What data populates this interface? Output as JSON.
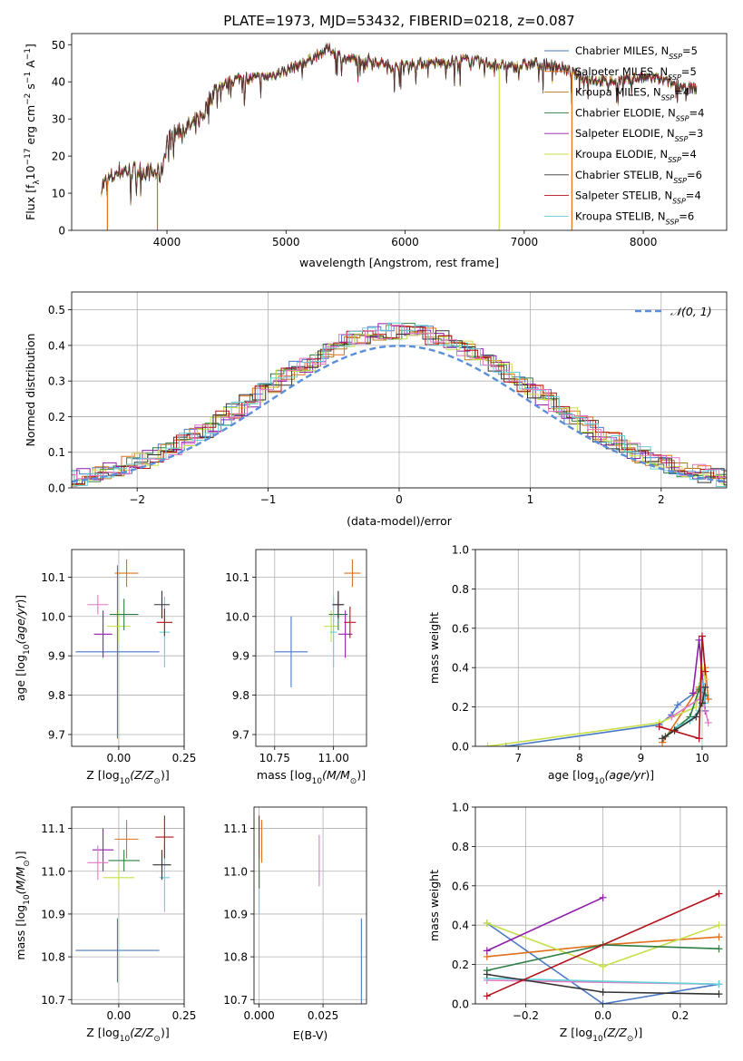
{
  "colors": {
    "Chabrier MILES": "#4a79c8",
    "Salpeter MILES": "#e0701c",
    "Kroupa MILES": "#b07c1e",
    "Chabrier ELODIE": "#2e7d43",
    "Salpeter ELODIE": "#8f1ea8",
    "Kroupa ELODIE": "#c5e04a",
    "Chabrier STELIB": "#333333",
    "Salpeter STELIB": "#b3121a",
    "Kroupa STELIB": "#63d0d8",
    "pink": "#e377c2",
    "normal": "#5b8fd9"
  },
  "chart_data": [
    {
      "type": "line",
      "title": "PLATE=1973, MJD=53432, FIBERID=0218, z=0.087",
      "xlabel": "wavelength [Angstrom, rest frame]",
      "ylabel_parts": [
        "Flux [f",
        "λ",
        "10",
        "−17",
        " erg cm",
        "−2",
        " s",
        "−1",
        " A",
        "−1",
        "]"
      ],
      "xlim": [
        3200,
        8700
      ],
      "ylim": [
        0,
        53
      ],
      "xticks": [
        4000,
        5000,
        6000,
        7000,
        8000
      ],
      "yticks": [
        0,
        10,
        20,
        30,
        40,
        50
      ],
      "legend_position": "upper right",
      "series": [
        {
          "name": "Chabrier MILES",
          "subscript": "SSP",
          "n": "5"
        },
        {
          "name": "Salpeter MILES",
          "subscript": "SSP",
          "n": "5"
        },
        {
          "name": "Kroupa MILES",
          "subscript": "SSP",
          "n": "4"
        },
        {
          "name": "Chabrier ELODIE",
          "subscript": "SSP",
          "n": "4"
        },
        {
          "name": "Salpeter ELODIE",
          "subscript": "SSP",
          "n": "3"
        },
        {
          "name": "Kroupa ELODIE",
          "subscript": "SSP",
          "n": "4"
        },
        {
          "name": "Chabrier STELIB",
          "subscript": "SSP",
          "n": "6"
        },
        {
          "name": "Salpeter STELIB",
          "subscript": "SSP",
          "n": "4"
        },
        {
          "name": "Kroupa STELIB",
          "subscript": "SSP",
          "n": "6"
        }
      ],
      "spectrum_shape": {
        "x": [
          3450,
          3600,
          3800,
          3950,
          4000,
          4100,
          4200,
          4300,
          4400,
          4600,
          4800,
          5000,
          5200,
          5350,
          5500,
          5700,
          5900,
          6100,
          6300,
          6500,
          6700,
          6900,
          7100,
          7300,
          7500,
          7700,
          7900,
          8100,
          8300,
          8450
        ],
        "y": [
          12,
          16,
          16,
          15,
          24,
          27,
          28,
          31,
          38,
          41,
          41,
          43,
          46,
          49,
          46,
          46,
          44,
          45,
          45,
          46,
          45,
          44,
          45,
          44,
          41,
          40,
          41,
          41,
          39,
          38
        ]
      },
      "dropouts": [
        {
          "x": 3500,
          "color": "Salpeter MILES"
        },
        {
          "x": 3920,
          "color": "Kroupa MILES"
        },
        {
          "x": 6790,
          "color": "Kroupa ELODIE"
        },
        {
          "x": 7400,
          "color": "Salpeter MILES"
        }
      ]
    },
    {
      "type": "line",
      "title": "",
      "xlabel": "(data-model)/error",
      "ylabel": "Normed distribution",
      "xlim": [
        -2.5,
        2.5
      ],
      "ylim": [
        0,
        0.55
      ],
      "xticks": [
        -2,
        -1,
        0,
        1,
        2
      ],
      "yticks": [
        0.0,
        0.1,
        0.2,
        0.3,
        0.4,
        0.5
      ],
      "grid": true,
      "legend_position": "upper right",
      "reference": {
        "name": "𝒩(0, 1)",
        "mean": 0,
        "sigma": 1
      }
    },
    {
      "type": "scatter",
      "xlabel": "Z [log10(Z/Z⊙)]",
      "ylabel": "age  [log10(age/yr)]",
      "xlim": [
        -0.18,
        0.25
      ],
      "ylim": [
        9.67,
        10.17
      ],
      "xticks": [
        0.0,
        0.25
      ],
      "yticks": [
        9.7,
        9.8,
        9.9,
        10.0,
        10.1
      ],
      "grid": true,
      "points": [
        {
          "color": "Chabrier MILES",
          "x": -0.005,
          "y": 9.91,
          "xerr": 0.16,
          "yerr": 0.22
        },
        {
          "color": "Salpeter MILES",
          "x": 0.03,
          "y": 10.11,
          "xerr": 0.045,
          "yerr": 0.035
        },
        {
          "color": "Kroupa ELODIE",
          "x": 0.0,
          "y": 9.975,
          "xerr": 0.045,
          "yerr": 0.04
        },
        {
          "color": "Chabrier ELODIE",
          "x": 0.02,
          "y": 10.005,
          "xerr": 0.055,
          "yerr": 0.04
        },
        {
          "color": "Salpeter ELODIE",
          "x": -0.06,
          "y": 9.955,
          "xerr": 0.035,
          "yerr": 0.06
        },
        {
          "color": "pink",
          "x": -0.08,
          "y": 10.03,
          "xerr": 0.04,
          "yerr": 0.025
        },
        {
          "color": "Kroupa STELIB",
          "x": 0.175,
          "y": 9.96,
          "xerr": 0.02,
          "yerr": 0.09
        },
        {
          "color": "Chabrier STELIB",
          "x": 0.165,
          "y": 10.03,
          "xerr": 0.03,
          "yerr": 0.035
        },
        {
          "color": "Salpeter STELIB",
          "x": 0.175,
          "y": 9.985,
          "xerr": 0.03,
          "yerr": 0.035
        }
      ]
    },
    {
      "type": "scatter",
      "xlabel": "mass [log10(M/M⊙)]",
      "ylabel": "",
      "xlim": [
        10.67,
        11.14
      ],
      "ylim": [
        9.67,
        10.17
      ],
      "xticks": [
        10.75,
        11.0
      ],
      "yticks": [
        9.7,
        9.8,
        9.9,
        10.0,
        10.1
      ],
      "grid": true,
      "points": [
        {
          "color": "Chabrier MILES",
          "x": 10.82,
          "y": 9.91,
          "xerr": 0.07,
          "yerr": 0.09
        },
        {
          "color": "Salpeter MILES",
          "x": 11.08,
          "y": 10.11,
          "xerr": 0.035,
          "yerr": 0.035
        },
        {
          "color": "Kroupa ELODIE",
          "x": 10.99,
          "y": 9.975,
          "xerr": 0.03,
          "yerr": 0.04
        },
        {
          "color": "Chabrier ELODIE",
          "x": 11.02,
          "y": 10.005,
          "xerr": 0.04,
          "yerr": 0.04
        },
        {
          "color": "Salpeter ELODIE",
          "x": 11.05,
          "y": 9.955,
          "xerr": 0.03,
          "yerr": 0.06
        },
        {
          "color": "pink",
          "x": 11.02,
          "y": 10.03,
          "xerr": 0.02,
          "yerr": 0.03
        },
        {
          "color": "Kroupa STELIB",
          "x": 11.0,
          "y": 9.96,
          "xerr": 0.015,
          "yerr": 0.09
        },
        {
          "color": "Chabrier STELIB",
          "x": 11.02,
          "y": 10.03,
          "xerr": 0.025,
          "yerr": 0.035
        },
        {
          "color": "Salpeter STELIB",
          "x": 11.07,
          "y": 9.985,
          "xerr": 0.025,
          "yerr": 0.04
        }
      ]
    },
    {
      "type": "line",
      "xlabel": "age  [log10(age/yr)]",
      "ylabel": "mass weight",
      "xlim": [
        6.3,
        10.4
      ],
      "ylim": [
        0,
        1
      ],
      "xticks": [
        7,
        8,
        9,
        10
      ],
      "yticks": [
        0.0,
        0.2,
        0.4,
        0.6,
        0.8,
        1.0
      ],
      "grid": true,
      "series": [
        {
          "color": "Chabrier MILES",
          "x": [
            6.8,
            9.3,
            9.5,
            9.6,
            10.0,
            10.1
          ],
          "y": [
            0.0,
            0.11,
            0.16,
            0.21,
            0.3,
            0.24
          ]
        },
        {
          "color": "Salpeter MILES",
          "x": [
            9.35,
            9.95,
            10.05,
            10.1
          ],
          "y": [
            0.02,
            0.3,
            0.4,
            0.24
          ]
        },
        {
          "color": "Kroupa ELODIE",
          "x": [
            6.5,
            9.3,
            9.9,
            10.0,
            10.05
          ],
          "y": [
            0.0,
            0.12,
            0.2,
            0.4,
            0.34
          ]
        },
        {
          "color": "Chabrier ELODIE",
          "x": [
            9.4,
            9.8,
            9.95,
            10.05
          ],
          "y": [
            0.05,
            0.15,
            0.29,
            0.26
          ]
        },
        {
          "color": "Salpeter ELODIE",
          "x": [
            9.85,
            9.95,
            10.05
          ],
          "y": [
            0.27,
            0.54,
            0.18
          ]
        },
        {
          "color": "pink",
          "x": [
            9.5,
            10.0,
            10.1
          ],
          "y": [
            0.15,
            0.25,
            0.12
          ]
        },
        {
          "color": "Kroupa STELIB",
          "x": [
            9.6,
            9.8,
            9.95,
            10.0,
            10.05
          ],
          "y": [
            0.1,
            0.13,
            0.18,
            0.32,
            0.22
          ]
        },
        {
          "color": "Chabrier STELIB",
          "x": [
            9.35,
            9.55,
            9.9,
            10.0,
            10.05
          ],
          "y": [
            0.04,
            0.08,
            0.15,
            0.22,
            0.3
          ]
        },
        {
          "color": "Salpeter STELIB",
          "x": [
            9.3,
            9.95,
            10.0,
            10.05
          ],
          "y": [
            0.1,
            0.04,
            0.56,
            0.38
          ]
        }
      ]
    },
    {
      "type": "scatter",
      "xlabel": "Z [log10(Z/Z⊙)]",
      "ylabel": "mass [log10(M/M⊙)]",
      "xlim": [
        -0.18,
        0.25
      ],
      "ylim": [
        10.69,
        11.15
      ],
      "xticks": [
        0.0,
        0.25
      ],
      "yticks": [
        10.7,
        10.8,
        10.9,
        11.0,
        11.1
      ],
      "grid": true,
      "points": [
        {
          "color": "Chabrier MILES",
          "x": -0.005,
          "y": 10.815,
          "xerr": 0.16,
          "yerr": 0.075
        },
        {
          "color": "Salpeter MILES",
          "x": 0.03,
          "y": 11.075,
          "xerr": 0.045,
          "yerr": 0.045
        },
        {
          "color": "Kroupa ELODIE",
          "x": 0.0,
          "y": 10.985,
          "xerr": 0.06,
          "yerr": 0.025
        },
        {
          "color": "Chabrier ELODIE",
          "x": 0.02,
          "y": 11.025,
          "xerr": 0.06,
          "yerr": 0.025
        },
        {
          "color": "Salpeter ELODIE",
          "x": -0.06,
          "y": 11.05,
          "xerr": 0.04,
          "yerr": 0.05
        },
        {
          "color": "pink",
          "x": -0.08,
          "y": 11.02,
          "xerr": 0.04,
          "yerr": 0.04
        },
        {
          "color": "Kroupa STELIB",
          "x": 0.175,
          "y": 10.985,
          "xerr": 0.02,
          "yerr": 0.08
        },
        {
          "color": "Chabrier STELIB",
          "x": 0.165,
          "y": 11.015,
          "xerr": 0.035,
          "yerr": 0.035
        },
        {
          "color": "Salpeter STELIB",
          "x": 0.175,
          "y": 11.08,
          "xerr": 0.035,
          "yerr": 0.05
        }
      ]
    },
    {
      "type": "scatter",
      "xlabel": "E(B-V)",
      "ylabel": "",
      "xlim": [
        -0.002,
        0.042
      ],
      "ylim": [
        10.69,
        11.15
      ],
      "xticks": [
        0.0,
        0.025
      ],
      "yticks": [
        10.7,
        10.8,
        10.9,
        11.0,
        11.1
      ],
      "grid": true,
      "points": [
        {
          "color": "Chabrier MILES",
          "x": 0.04,
          "y": 10.79,
          "xerr": 0,
          "yerr": 0.1
        },
        {
          "color": "Salpeter MILES",
          "x": 0.001,
          "y": 11.07,
          "xerr": 0,
          "yerr": 0.05
        },
        {
          "color": "Kroupa STELIB",
          "x": 0.0,
          "y": 10.95,
          "xerr": 0,
          "yerr": 0.05
        },
        {
          "color": "Salpeter STELIB",
          "x": 0.0,
          "y": 11.08,
          "xerr": 0,
          "yerr": 0.05
        },
        {
          "color": "Chabrier ELODIE",
          "x": 0.0,
          "y": 11.0,
          "xerr": 0,
          "yerr": 0.04
        },
        {
          "color": "pink",
          "x": 0.0235,
          "y": 11.025,
          "xerr": 0,
          "yerr": 0.06
        }
      ]
    },
    {
      "type": "line",
      "xlabel": "Z [log10(Z/Z⊙)]",
      "ylabel": "mass weight",
      "xlim": [
        -0.33,
        0.32
      ],
      "ylim": [
        0,
        1
      ],
      "xticks": [
        -0.2,
        0.0,
        0.2
      ],
      "yticks": [
        0.0,
        0.2,
        0.4,
        0.6,
        0.8,
        1.0
      ],
      "grid": true,
      "series": [
        {
          "color": "Chabrier MILES",
          "x": [
            -0.3,
            0.0,
            0.3
          ],
          "y": [
            0.41,
            0.0,
            0.1
          ]
        },
        {
          "color": "Salpeter MILES",
          "x": [
            -0.3,
            0.0,
            0.3
          ],
          "y": [
            0.24,
            0.3,
            0.34
          ]
        },
        {
          "color": "Kroupa ELODIE",
          "x": [
            -0.3,
            0.0,
            0.3
          ],
          "y": [
            0.41,
            0.19,
            0.4
          ]
        },
        {
          "color": "Chabrier ELODIE",
          "x": [
            -0.3,
            0.0,
            0.3
          ],
          "y": [
            0.17,
            0.3,
            0.28
          ]
        },
        {
          "color": "Salpeter ELODIE",
          "x": [
            -0.3,
            0.0
          ],
          "y": [
            0.27,
            0.54
          ]
        },
        {
          "color": "pink",
          "x": [
            -0.3,
            0.3
          ],
          "y": [
            0.12,
            0.1
          ]
        },
        {
          "color": "Kroupa STELIB",
          "x": [
            -0.3,
            0.3
          ],
          "y": [
            0.13,
            0.1
          ]
        },
        {
          "color": "Chabrier STELIB",
          "x": [
            -0.3,
            0.0,
            0.3
          ],
          "y": [
            0.15,
            0.06,
            0.05
          ]
        },
        {
          "color": "Salpeter STELIB",
          "x": [
            -0.3,
            0.3
          ],
          "y": [
            0.04,
            0.56
          ]
        }
      ]
    }
  ]
}
